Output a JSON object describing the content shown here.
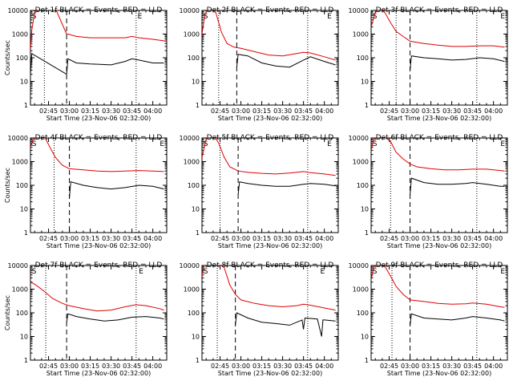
{
  "figure": {
    "background": "#ffffff",
    "foreground": "#000000",
    "lld_color": "#e00000",
    "events_color": "#000000"
  },
  "chart_data": [
    {
      "type": "line",
      "title": "Det 1f BLACK = Events, RED = LLD",
      "xlabel": "Start Time (23-Nov-06 02:32:00)",
      "ylabel": "Counts/sec",
      "yscale": "log",
      "ylim": [
        1,
        10000
      ],
      "y_ticks": [
        "1",
        "10",
        "100",
        "1000",
        "10000"
      ],
      "x_ticks": [
        "02:45",
        "03:00",
        "03:15",
        "03:30",
        "03:45",
        "04:00"
      ],
      "xlim": [
        "02:32",
        "04:10"
      ],
      "markers": {
        "dotted": [
          "02:32",
          "02:42",
          "03:48",
          "04:10"
        ],
        "dashed": [
          "02:58"
        ],
        "letters": [
          {
            "t": "S",
            "x": "02:33"
          },
          {
            "t": "E",
            "x": "03:49"
          }
        ]
      },
      "series": [
        {
          "name": "LLD",
          "color": "#e00000",
          "x": [
            "02:32",
            "02:33",
            "02:35",
            "02:40",
            "02:45",
            "02:50",
            "02:58",
            "02:59",
            "03:05",
            "03:15",
            "03:30",
            "03:40",
            "03:45",
            "03:50",
            "04:00",
            "04:10"
          ],
          "y": [
            200,
            1500,
            8000,
            12000,
            12000,
            12000,
            1000,
            1000,
            800,
            700,
            700,
            700,
            800,
            700,
            600,
            500
          ]
        },
        {
          "name": "Events",
          "color": "#000000",
          "x": [
            "02:32",
            "02:33",
            "02:58",
            "02:59",
            "03:05",
            "03:15",
            "03:30",
            "03:40",
            "03:45",
            "03:50",
            "04:00",
            "04:08"
          ],
          "y": [
            20,
            150,
            20,
            90,
            60,
            55,
            50,
            70,
            90,
            80,
            60,
            60
          ]
        }
      ]
    },
    {
      "type": "line",
      "title": "Det 2f BLACK = Events, RED = LLD",
      "xlabel": "Start Time (23-Nov-06 02:32:00)",
      "ylabel": "",
      "yscale": "log",
      "ylim": [
        1,
        10000
      ],
      "y_ticks": [
        "1",
        "10",
        "100",
        "1000",
        "10000"
      ],
      "x_ticks": [
        "02:45",
        "03:00",
        "03:15",
        "03:30",
        "03:45",
        "04:00"
      ],
      "xlim": [
        "02:32",
        "04:10"
      ],
      "markers": {
        "dotted": [
          "02:32",
          "02:44",
          "03:48",
          "04:10"
        ],
        "dashed": [
          "02:57"
        ],
        "letters": [
          {
            "t": "S",
            "x": "02:33"
          },
          {
            "t": "E",
            "x": "04:02"
          }
        ]
      },
      "series": [
        {
          "name": "LLD",
          "color": "#e00000",
          "x": [
            "02:32",
            "02:34",
            "02:36",
            "02:38",
            "02:42",
            "02:46",
            "02:50",
            "02:55",
            "03:00",
            "03:10",
            "03:20",
            "03:30",
            "03:40",
            "03:45",
            "03:50",
            "04:00",
            "04:08"
          ],
          "y": [
            1000,
            6000,
            12000,
            12000,
            8000,
            1200,
            400,
            280,
            250,
            180,
            130,
            120,
            150,
            170,
            160,
            110,
            80
          ]
        },
        {
          "name": "Events",
          "color": "#000000",
          "x": [
            "02:57",
            "02:58",
            "03:05",
            "03:15",
            "03:25",
            "03:35",
            "03:45",
            "03:50",
            "04:00",
            "04:08"
          ],
          "y": [
            40,
            140,
            120,
            60,
            45,
            40,
            80,
            110,
            70,
            50
          ]
        }
      ]
    },
    {
      "type": "line",
      "title": "Det 3f BLACK = Events, RED = LLD",
      "xlabel": "Start Time (23-Nov-06 02:32:00)",
      "ylabel": "",
      "yscale": "log",
      "ylim": [
        1,
        10000
      ],
      "y_ticks": [
        "1",
        "10",
        "100",
        "1000",
        "10000"
      ],
      "x_ticks": [
        "02:45",
        "03:00",
        "03:15",
        "03:30",
        "03:45",
        "04:00"
      ],
      "xlim": [
        "02:32",
        "04:10"
      ],
      "markers": {
        "dotted": [
          "02:32",
          "02:50",
          "03:48",
          "04:10"
        ],
        "dashed": [
          "03:00"
        ],
        "letters": [
          {
            "t": "S",
            "x": "02:33"
          },
          {
            "t": "E",
            "x": "04:05"
          }
        ]
      },
      "series": [
        {
          "name": "LLD",
          "color": "#e00000",
          "x": [
            "02:32",
            "02:35",
            "02:38",
            "02:42",
            "02:46",
            "02:50",
            "02:55",
            "03:00",
            "03:10",
            "03:20",
            "03:30",
            "03:40",
            "03:50",
            "04:00",
            "04:08"
          ],
          "y": [
            2000,
            8000,
            12000,
            8000,
            3000,
            1300,
            800,
            500,
            400,
            340,
            300,
            300,
            320,
            320,
            280
          ]
        },
        {
          "name": "Events",
          "color": "#000000",
          "x": [
            "03:00",
            "03:01",
            "03:10",
            "03:20",
            "03:30",
            "03:40",
            "03:50",
            "04:00",
            "04:08"
          ],
          "y": [
            30,
            120,
            100,
            90,
            80,
            85,
            100,
            90,
            70
          ]
        }
      ]
    },
    {
      "type": "line",
      "title": "Det 4f BLACK = Events, RED = LLD",
      "xlabel": "Start Time (23-Nov-06 02:32:00)",
      "ylabel": "Counts/sec",
      "yscale": "log",
      "ylim": [
        1,
        10000
      ],
      "y_ticks": [
        "1",
        "10",
        "100",
        "1000",
        "10000"
      ],
      "x_ticks": [
        "02:45",
        "03:00",
        "03:15",
        "03:30",
        "03:45",
        "04:00"
      ],
      "xlim": [
        "02:32",
        "04:10"
      ],
      "markers": {
        "dotted": [
          "02:32",
          "02:49",
          "03:48",
          "04:10"
        ],
        "dashed": [
          "03:00"
        ],
        "letters": [
          {
            "t": "S",
            "x": "02:33"
          },
          {
            "t": "E",
            "x": "04:05"
          }
        ]
      },
      "series": [
        {
          "name": "LLD",
          "color": "#e00000",
          "x": [
            "02:32",
            "02:34",
            "02:38",
            "02:42",
            "02:46",
            "02:50",
            "02:55",
            "03:00",
            "03:10",
            "03:20",
            "03:30",
            "03:40",
            "03:50",
            "04:00",
            "04:08"
          ],
          "y": [
            4000,
            9000,
            12000,
            12000,
            4000,
            1500,
            700,
            500,
            450,
            400,
            380,
            400,
            420,
            400,
            380
          ]
        },
        {
          "name": "Events",
          "color": "#000000",
          "x": [
            "03:00",
            "03:01",
            "03:10",
            "03:20",
            "03:30",
            "03:40",
            "03:50",
            "04:00",
            "04:08"
          ],
          "y": [
            30,
            140,
            100,
            80,
            70,
            80,
            100,
            90,
            70
          ]
        }
      ]
    },
    {
      "type": "line",
      "title": "Det 5f BLACK = Events, RED = LLD",
      "xlabel": "Start Time (23-Nov-06 02:32:00)",
      "ylabel": "",
      "yscale": "log",
      "ylim": [
        1,
        10000
      ],
      "y_ticks": [
        "1",
        "10",
        "100",
        "1000",
        "10000"
      ],
      "x_ticks": [
        "02:45",
        "03:00",
        "03:15",
        "03:30",
        "03:45",
        "04:00"
      ],
      "xlim": [
        "02:32",
        "04:10"
      ],
      "markers": {
        "dotted": [
          "02:32",
          "02:45",
          "03:48",
          "04:10"
        ],
        "dashed": [
          "02:58"
        ],
        "letters": [
          {
            "t": "S",
            "x": "02:33"
          },
          {
            "t": "E",
            "x": "04:02"
          }
        ]
      },
      "series": [
        {
          "name": "LLD",
          "color": "#e00000",
          "x": [
            "02:32",
            "02:35",
            "02:38",
            "02:41",
            "02:44",
            "02:48",
            "02:52",
            "02:58",
            "03:05",
            "03:15",
            "03:25",
            "03:35",
            "03:45",
            "03:50",
            "04:00",
            "04:08"
          ],
          "y": [
            1500,
            9000,
            12000,
            12000,
            6000,
            1500,
            600,
            400,
            350,
            320,
            300,
            330,
            380,
            340,
            300,
            260
          ]
        },
        {
          "name": "Events",
          "color": "#000000",
          "x": [
            "02:58",
            "02:59",
            "03:05",
            "03:15",
            "03:25",
            "03:35",
            "03:45",
            "03:50",
            "04:00",
            "04:08"
          ],
          "y": [
            40,
            140,
            120,
            100,
            90,
            90,
            110,
            120,
            110,
            95
          ]
        }
      ]
    },
    {
      "type": "line",
      "title": "Det 6f BLACK = Events, RED = LLD",
      "xlabel": "Start Time (23-Nov-06 02:32:00)",
      "ylabel": "",
      "yscale": "log",
      "ylim": [
        1,
        10000
      ],
      "y_ticks": [
        "1",
        "10",
        "100",
        "1000",
        "10000"
      ],
      "x_ticks": [
        "02:45",
        "03:00",
        "03:15",
        "03:30",
        "03:45",
        "04:00"
      ],
      "xlim": [
        "02:32",
        "04:10"
      ],
      "markers": {
        "dotted": [
          "02:32",
          "02:46",
          "03:48",
          "04:10"
        ],
        "dashed": [
          "03:00"
        ],
        "letters": [
          {
            "t": "S",
            "x": "02:33"
          },
          {
            "t": "E",
            "x": "04:05"
          }
        ]
      },
      "series": [
        {
          "name": "LLD",
          "color": "#e00000",
          "x": [
            "02:32",
            "02:34",
            "02:38",
            "02:42",
            "02:46",
            "02:50",
            "02:55",
            "03:00",
            "03:05",
            "03:15",
            "03:25",
            "03:35",
            "03:45",
            "03:55",
            "04:05",
            "04:08"
          ],
          "y": [
            3000,
            9000,
            12000,
            12000,
            7000,
            2500,
            1300,
            800,
            600,
            500,
            450,
            450,
            480,
            480,
            420,
            400
          ]
        },
        {
          "name": "Events",
          "color": "#000000",
          "x": [
            "03:00",
            "03:01",
            "03:10",
            "03:20",
            "03:30",
            "03:40",
            "03:45",
            "03:55",
            "04:05",
            "04:08"
          ],
          "y": [
            40,
            200,
            130,
            110,
            110,
            120,
            130,
            110,
            90,
            90
          ]
        }
      ]
    },
    {
      "type": "line",
      "title": "Det 7f BLACK = Events, RED = LLD",
      "xlabel": "Start Time (23-Nov-06 02:32:00)",
      "ylabel": "Counts/sec",
      "yscale": "log",
      "ylim": [
        1,
        10000
      ],
      "y_ticks": [
        "1",
        "10",
        "100",
        "1000",
        "10000"
      ],
      "x_ticks": [
        "02:45",
        "03:00",
        "03:15",
        "03:30",
        "03:45",
        "04:00"
      ],
      "xlim": [
        "02:32",
        "04:10"
      ],
      "markers": {
        "dotted": [
          "02:32",
          "02:43",
          "03:48",
          "04:10"
        ],
        "dashed": [
          "02:58"
        ],
        "letters": [
          {
            "t": "S",
            "x": "02:33"
          },
          {
            "t": "E",
            "x": "03:50"
          }
        ]
      },
      "series": [
        {
          "name": "LLD",
          "color": "#e00000",
          "x": [
            "02:32",
            "02:36",
            "02:42",
            "02:48",
            "02:55",
            "03:00",
            "03:10",
            "03:20",
            "03:30",
            "03:40",
            "03:48",
            "03:55",
            "04:05",
            "04:08"
          ],
          "y": [
            2000,
            1500,
            800,
            400,
            250,
            200,
            150,
            120,
            130,
            180,
            220,
            200,
            150,
            130
          ]
        },
        {
          "name": "Events",
          "color": "#000000",
          "x": [
            "02:58",
            "02:59",
            "03:05",
            "03:15",
            "03:25",
            "03:35",
            "03:45",
            "03:55",
            "04:05",
            "04:08"
          ],
          "y": [
            40,
            90,
            70,
            55,
            45,
            50,
            65,
            70,
            60,
            55
          ]
        }
      ]
    },
    {
      "type": "line",
      "title": "Det 8f BLACK = Events, RED = LLD",
      "xlabel": "Start Time (23-Nov-06 02:32:00)",
      "ylabel": "",
      "yscale": "log",
      "ylim": [
        1,
        10000
      ],
      "y_ticks": [
        "1",
        "10",
        "100",
        "1000",
        "10000"
      ],
      "x_ticks": [
        "02:45",
        "03:00",
        "03:15",
        "03:30",
        "03:45",
        "04:00"
      ],
      "xlim": [
        "02:32",
        "04:10"
      ],
      "markers": {
        "dotted": [
          "02:32",
          "02:43",
          "03:48",
          "04:10"
        ],
        "dashed": [
          "02:56"
        ],
        "letters": [
          {
            "t": "S",
            "x": "02:33"
          },
          {
            "t": "E",
            "x": "03:57"
          }
        ]
      },
      "series": [
        {
          "name": "LLD",
          "color": "#e00000",
          "x": [
            "02:32",
            "02:34",
            "02:38",
            "02:44",
            "02:48",
            "02:52",
            "02:56",
            "03:00",
            "03:10",
            "03:20",
            "03:30",
            "03:40",
            "03:45",
            "03:50",
            "04:00",
            "04:08"
          ],
          "y": [
            4000,
            12000,
            12000,
            12000,
            8000,
            1500,
            600,
            350,
            250,
            200,
            180,
            200,
            230,
            210,
            160,
            130
          ]
        },
        {
          "name": "Events",
          "color": "#000000",
          "x": [
            "02:56",
            "02:57",
            "03:05",
            "03:15",
            "03:25",
            "03:35",
            "03:44",
            "03:45",
            "03:46",
            "03:55",
            "03:58",
            "03:59",
            "04:00",
            "04:08"
          ],
          "y": [
            30,
            100,
            60,
            40,
            35,
            30,
            50,
            20,
            60,
            55,
            10,
            50,
            50,
            45
          ]
        }
      ]
    },
    {
      "type": "line",
      "title": "Det 9f BLACK = Events, RED = LLD",
      "xlabel": "Start Time (23-Nov-06 02:32:00)",
      "ylabel": "",
      "yscale": "log",
      "ylim": [
        1,
        10000
      ],
      "y_ticks": [
        "1",
        "10",
        "100",
        "1000",
        "10000"
      ],
      "x_ticks": [
        "02:45",
        "03:00",
        "03:15",
        "03:30",
        "03:45",
        "04:00"
      ],
      "xlim": [
        "02:32",
        "04:10"
      ],
      "markers": {
        "dotted": [
          "02:32",
          "02:47",
          "03:48",
          "04:10"
        ],
        "dashed": [
          "03:00"
        ],
        "letters": [
          {
            "t": "S",
            "x": "02:33"
          },
          {
            "t": "E",
            "x": "04:05"
          }
        ]
      },
      "series": [
        {
          "name": "LLD",
          "color": "#e00000",
          "x": [
            "02:32",
            "02:34",
            "02:38",
            "02:42",
            "02:46",
            "02:50",
            "02:55",
            "03:00",
            "03:10",
            "03:20",
            "03:30",
            "03:40",
            "03:45",
            "03:55",
            "04:05",
            "04:08"
          ],
          "y": [
            2500,
            9000,
            12000,
            9000,
            3500,
            1300,
            600,
            350,
            300,
            250,
            230,
            240,
            260,
            230,
            180,
            170
          ]
        },
        {
          "name": "Events",
          "color": "#000000",
          "x": [
            "03:00",
            "03:01",
            "03:10",
            "03:20",
            "03:30",
            "03:40",
            "03:45",
            "03:55",
            "04:05",
            "04:08"
          ],
          "y": [
            30,
            90,
            60,
            55,
            50,
            60,
            70,
            60,
            50,
            45
          ]
        }
      ]
    }
  ]
}
